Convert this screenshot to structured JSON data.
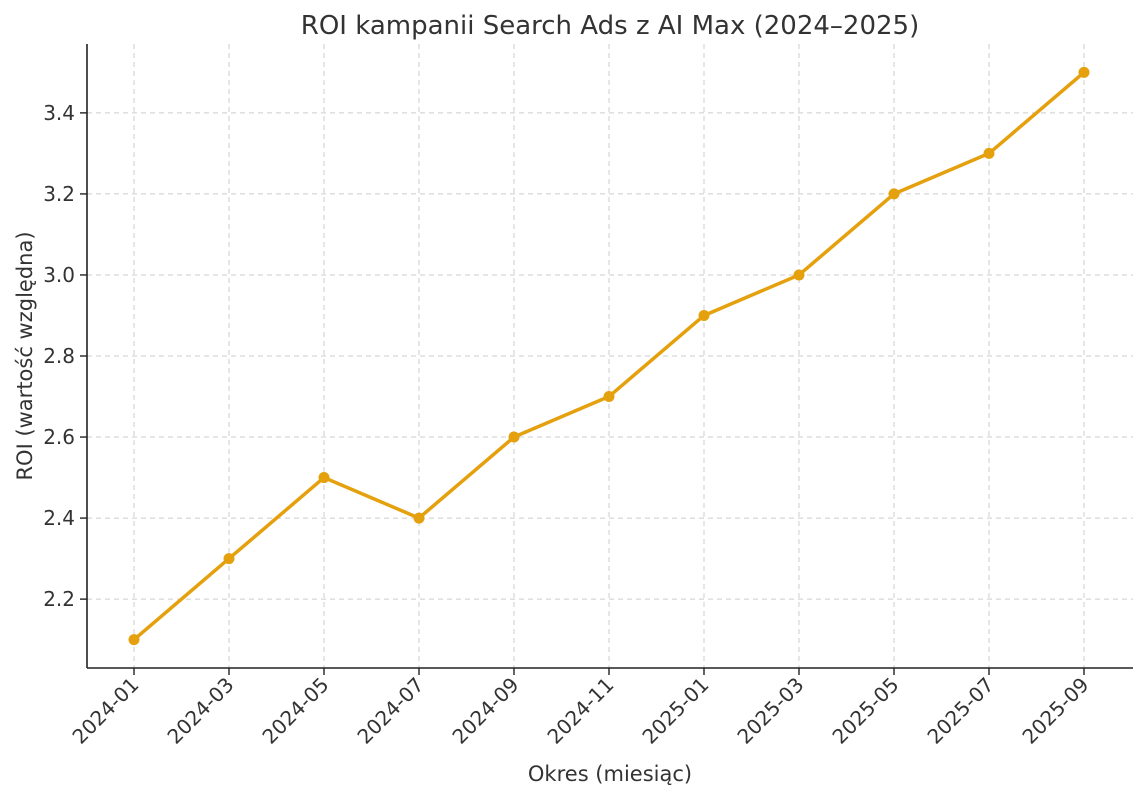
{
  "chart_data": {
    "type": "line",
    "title": "ROI kampanii Search Ads z AI Max (2024–2025)",
    "xlabel": "Okres (miesiąc)",
    "ylabel": "ROI (wartość względna)",
    "x": [
      "2024-01",
      "2024-03",
      "2024-05",
      "2024-07",
      "2024-09",
      "2024-11",
      "2025-01",
      "2025-03",
      "2025-05",
      "2025-07",
      "2025-09"
    ],
    "values": [
      2.1,
      2.3,
      2.5,
      2.4,
      2.6,
      2.7,
      2.9,
      3.0,
      3.2,
      3.3,
      3.5
    ],
    "yticks": [
      "2.2",
      "2.4",
      "2.6",
      "2.8",
      "3.0",
      "3.2",
      "3.4"
    ],
    "ylim": [
      2.03,
      3.57
    ],
    "grid": true,
    "line_color": "#E5A00D"
  }
}
